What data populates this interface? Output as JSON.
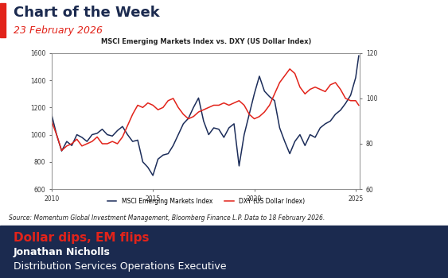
{
  "header": {
    "title": "Chart of the Week",
    "date": "23 February 2026"
  },
  "chart_data": {
    "type": "line",
    "title": "MSCI Emerging Markets Index vs. DXY (US Dollar Index)",
    "x": [
      2010.0,
      2010.25,
      2010.5,
      2010.75,
      2011.0,
      2011.25,
      2011.5,
      2011.75,
      2012.0,
      2012.25,
      2012.5,
      2012.75,
      2013.0,
      2013.25,
      2013.5,
      2013.75,
      2014.0,
      2014.25,
      2014.5,
      2014.75,
      2015.0,
      2015.25,
      2015.5,
      2015.75,
      2016.0,
      2016.25,
      2016.5,
      2016.75,
      2017.0,
      2017.25,
      2017.5,
      2017.75,
      2018.0,
      2018.25,
      2018.5,
      2018.75,
      2019.0,
      2019.25,
      2019.5,
      2019.75,
      2020.0,
      2020.25,
      2020.5,
      2020.75,
      2021.0,
      2021.25,
      2021.5,
      2021.75,
      2022.0,
      2022.25,
      2022.5,
      2022.75,
      2023.0,
      2023.25,
      2023.5,
      2023.75,
      2024.0,
      2024.25,
      2024.5,
      2024.75,
      2025.0,
      2025.15
    ],
    "xlim": [
      2010,
      2025.2
    ],
    "xticks": [
      2010,
      2015,
      2020,
      2025
    ],
    "ylim": [
      600,
      1600
    ],
    "yticks": [
      600,
      800,
      1000,
      1200,
      1400,
      1600
    ],
    "y2lim": [
      60,
      120
    ],
    "y2ticks": [
      60,
      80,
      100,
      120
    ],
    "grid": false,
    "legend": "lower center",
    "series": [
      {
        "name": "MSCI Emerging Markets Index",
        "color": "#1c2d5a",
        "values": [
          1150,
          1000,
          880,
          950,
          920,
          1000,
          980,
          950,
          1000,
          1010,
          1040,
          1000,
          990,
          1030,
          1060,
          1000,
          950,
          960,
          800,
          760,
          700,
          820,
          850,
          860,
          920,
          1000,
          1080,
          1120,
          1200,
          1270,
          1100,
          1000,
          1050,
          1040,
          980,
          1050,
          1080,
          770,
          1000,
          1150,
          1300,
          1430,
          1320,
          1280,
          1250,
          1050,
          950,
          860,
          950,
          1000,
          920,
          1000,
          980,
          1050,
          1080,
          1100,
          1150,
          1180,
          1230,
          1290,
          1420,
          1580
        ]
      },
      {
        "name": "DXY (US Dollar Index)",
        "color": "#e2231a",
        "axis": "y2",
        "values": [
          90,
          84,
          77,
          79,
          80,
          82,
          79,
          80,
          81,
          83,
          80,
          80,
          81,
          80,
          83,
          88,
          93,
          97,
          96,
          98,
          97,
          95,
          96,
          99,
          100,
          96,
          93,
          91,
          92,
          94,
          95,
          96,
          97,
          97,
          98,
          97,
          98,
          99,
          97,
          93,
          91,
          92,
          94,
          97,
          102,
          107,
          110,
          113,
          111,
          105,
          102,
          104,
          105,
          104,
          103,
          106,
          107,
          104,
          100,
          99,
          99,
          97
        ]
      }
    ]
  },
  "source": "Source: Momentum Global Investment Management, Bloomberg Finance L.P. Data to 18 February 2026.",
  "footer": {
    "headline": "Dollar dips, EM flips",
    "name": "Jonathan Nicholls",
    "role": "Distribution Services Operations Executive"
  }
}
